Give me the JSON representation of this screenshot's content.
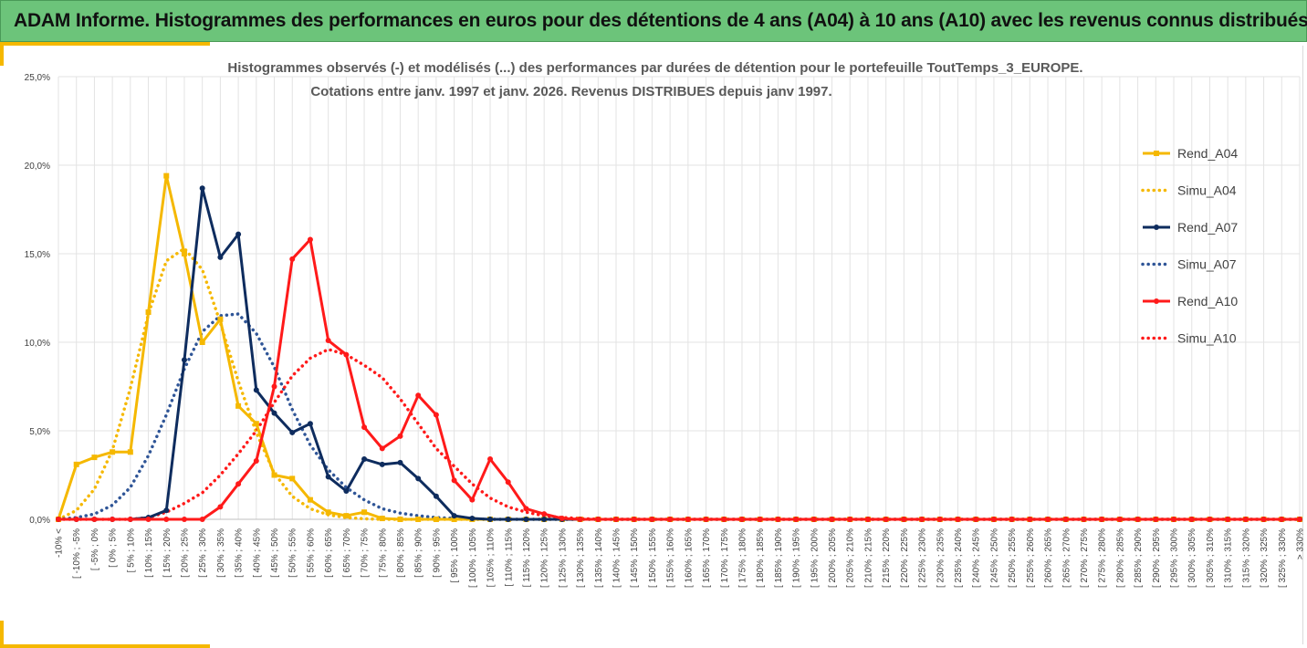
{
  "header": {
    "title": "ADAM Informe. Histogrammes des performances en euros pour des détentions de 4 ans (A04) à 10 ans (A10) avec les revenus connus distribués"
  },
  "chart_data": {
    "type": "line",
    "title": "Histogrammes observés (-) et modélisés (...) des performances par durées de détention pour le portefeuille ToutTemps_3_EUROPE.",
    "subtitle": "Cotations entre janv. 1997 et janv. 2026. Revenus DISTRIBUES depuis janv 1997.",
    "xlabel": "",
    "ylabel": "",
    "ylim": [
      0,
      25
    ],
    "y_ticks": [
      "0,0%",
      "5,0%",
      "10,0%",
      "15,0%",
      "20,0%",
      "25,0%"
    ],
    "grid": true,
    "legend_position": "right",
    "categories": [
      "-10% <",
      "[ -10% ; -5%",
      "[ -5% ; 0%",
      "[ 0% ; 5%",
      "[ 5% ; 10%",
      "[ 10% ; 15%",
      "[ 15% ; 20%",
      "[ 20% ; 25%",
      "[ 25% ; 30%",
      "[ 30% ; 35%",
      "[ 35% ; 40%",
      "[ 40% ; 45%",
      "[ 45% ; 50%",
      "[ 50% ; 55%",
      "[ 55% ; 60%",
      "[ 60% ; 65%",
      "[ 65% ; 70%",
      "[ 70% ; 75%",
      "[ 75% ; 80%",
      "[ 80% ; 85%",
      "[ 85% ; 90%",
      "[ 90% ; 95%",
      "[ 95% ; 100%",
      "[ 100% ; 105%",
      "[ 105% ; 110%",
      "[ 110% ; 115%",
      "[ 115% ; 120%",
      "[ 120% ; 125%",
      "[ 125% ; 130%",
      "[ 130% ; 135%",
      "[ 135% ; 140%",
      "[ 140% ; 145%",
      "[ 145% ; 150%",
      "[ 150% ; 155%",
      "[ 155% ; 160%",
      "[ 160% ; 165%",
      "[ 165% ; 170%",
      "[ 170% ; 175%",
      "[ 175% ; 180%",
      "[ 180% ; 185%",
      "[ 185% ; 190%",
      "[ 190% ; 195%",
      "[ 195% ; 200%",
      "[ 200% ; 205%",
      "[ 205% ; 210%",
      "[ 210% ; 215%",
      "[ 215% ; 220%",
      "[ 220% ; 225%",
      "[ 225% ; 230%",
      "[ 230% ; 235%",
      "[ 235% ; 240%",
      "[ 240% ; 245%",
      "[ 245% ; 250%",
      "[ 250% ; 255%",
      "[ 255% ; 260%",
      "[ 260% ; 265%",
      "[ 265% ; 270%",
      "[ 270% ; 275%",
      "[ 275% ; 280%",
      "[ 280% ; 285%",
      "[ 285% ; 290%",
      "[ 290% ; 295%",
      "[ 295% ; 300%",
      "[ 300% ; 305%",
      "[ 305% ; 310%",
      "[ 310% ; 315%",
      "[ 315% ; 320%",
      "[ 320% ; 325%",
      "[ 325% ; 330%",
      "> 330%"
    ],
    "series": [
      {
        "name": "Rend_A04",
        "style": "solid",
        "color": "#f5b800",
        "values": [
          0,
          3.1,
          3.5,
          3.8,
          3.8,
          11.7,
          19.4,
          15,
          10,
          11.3,
          6.4,
          5.4,
          2.5,
          2.3,
          1.1,
          0.4,
          0.2,
          0.4,
          0.05,
          0,
          0,
          0,
          0,
          0,
          0,
          0,
          0,
          0,
          0,
          0,
          0,
          0,
          0,
          0,
          0,
          0,
          0,
          0,
          0,
          0,
          0,
          0,
          0,
          0,
          0,
          0,
          0,
          0,
          0,
          0,
          0,
          0,
          0,
          0,
          0,
          0,
          0,
          0,
          0,
          0,
          0,
          0,
          0,
          0,
          0,
          0,
          0,
          0,
          0,
          0
        ]
      },
      {
        "name": "Simu_A04",
        "style": "dotted",
        "color": "#f5b800",
        "values": [
          0,
          0.5,
          1.7,
          3.9,
          7.4,
          11.6,
          14.6,
          15.3,
          14.1,
          11.1,
          7.8,
          4.9,
          2.6,
          1.3,
          0.6,
          0.25,
          0.1,
          0.03,
          0,
          0,
          0,
          0,
          0,
          0,
          0,
          0,
          0,
          0,
          0,
          0,
          0,
          0,
          0,
          0,
          0,
          0,
          0,
          0,
          0,
          0,
          0,
          0,
          0,
          0,
          0,
          0,
          0,
          0,
          0,
          0,
          0,
          0,
          0,
          0,
          0,
          0,
          0,
          0,
          0,
          0,
          0,
          0,
          0,
          0,
          0,
          0,
          0,
          0,
          0,
          0
        ]
      },
      {
        "name": "Rend_A07",
        "style": "solid",
        "color": "#0e2c5e",
        "values": [
          0,
          0,
          0,
          0,
          0,
          0.1,
          0.5,
          9,
          18.7,
          14.8,
          16.1,
          7.3,
          6,
          4.9,
          5.4,
          2.4,
          1.6,
          3.4,
          3.1,
          3.2,
          2.3,
          1.3,
          0.2,
          0.05,
          0,
          0,
          0,
          0,
          0,
          0,
          0,
          0,
          0,
          0,
          0,
          0,
          0,
          0,
          0,
          0,
          0,
          0,
          0,
          0,
          0,
          0,
          0,
          0,
          0,
          0,
          0,
          0,
          0,
          0,
          0,
          0,
          0,
          0,
          0,
          0,
          0,
          0,
          0,
          0,
          0,
          0,
          0,
          0,
          0,
          0
        ]
      },
      {
        "name": "Simu_A07",
        "style": "dotted",
        "color": "#2f5597",
        "values": [
          0,
          0.1,
          0.3,
          0.8,
          1.8,
          3.6,
          5.9,
          8.5,
          10.6,
          11.5,
          11.6,
          10.5,
          8.6,
          6.2,
          4.2,
          2.8,
          1.8,
          1.1,
          0.6,
          0.35,
          0.2,
          0.1,
          0.05,
          0,
          0,
          0,
          0,
          0,
          0,
          0,
          0,
          0,
          0,
          0,
          0,
          0,
          0,
          0,
          0,
          0,
          0,
          0,
          0,
          0,
          0,
          0,
          0,
          0,
          0,
          0,
          0,
          0,
          0,
          0,
          0,
          0,
          0,
          0,
          0,
          0,
          0,
          0,
          0,
          0,
          0,
          0,
          0,
          0,
          0,
          0
        ]
      },
      {
        "name": "Rend_A10",
        "style": "solid",
        "color": "#ff1a1a",
        "values": [
          0,
          0,
          0,
          0,
          0,
          0,
          0,
          0,
          0,
          0.7,
          2,
          3.3,
          7.5,
          14.7,
          15.8,
          10.1,
          9.3,
          5.2,
          4,
          4.7,
          7,
          5.9,
          2.2,
          1.1,
          3.4,
          2.1,
          0.6,
          0.3,
          0.05,
          0,
          0,
          0,
          0,
          0,
          0,
          0,
          0,
          0,
          0,
          0,
          0,
          0,
          0,
          0,
          0,
          0,
          0,
          0,
          0,
          0,
          0,
          0,
          0,
          0,
          0,
          0,
          0,
          0,
          0,
          0,
          0,
          0,
          0,
          0,
          0,
          0,
          0,
          0,
          0,
          0
        ]
      },
      {
        "name": "Simu_A10",
        "style": "dotted",
        "color": "#ff1a1a",
        "values": [
          0,
          0,
          0,
          0,
          0,
          0.1,
          0.4,
          0.9,
          1.5,
          2.5,
          3.7,
          5,
          6.6,
          8.1,
          9.1,
          9.6,
          9.3,
          8.7,
          8,
          6.8,
          5.4,
          4,
          3,
          2,
          1.2,
          0.7,
          0.4,
          0.2,
          0.1,
          0.05,
          0,
          0,
          0,
          0,
          0,
          0,
          0,
          0,
          0,
          0,
          0,
          0,
          0,
          0,
          0,
          0,
          0,
          0,
          0,
          0,
          0,
          0,
          0,
          0,
          0,
          0,
          0,
          0,
          0,
          0,
          0,
          0,
          0,
          0,
          0,
          0,
          0,
          0,
          0,
          0
        ]
      }
    ]
  }
}
